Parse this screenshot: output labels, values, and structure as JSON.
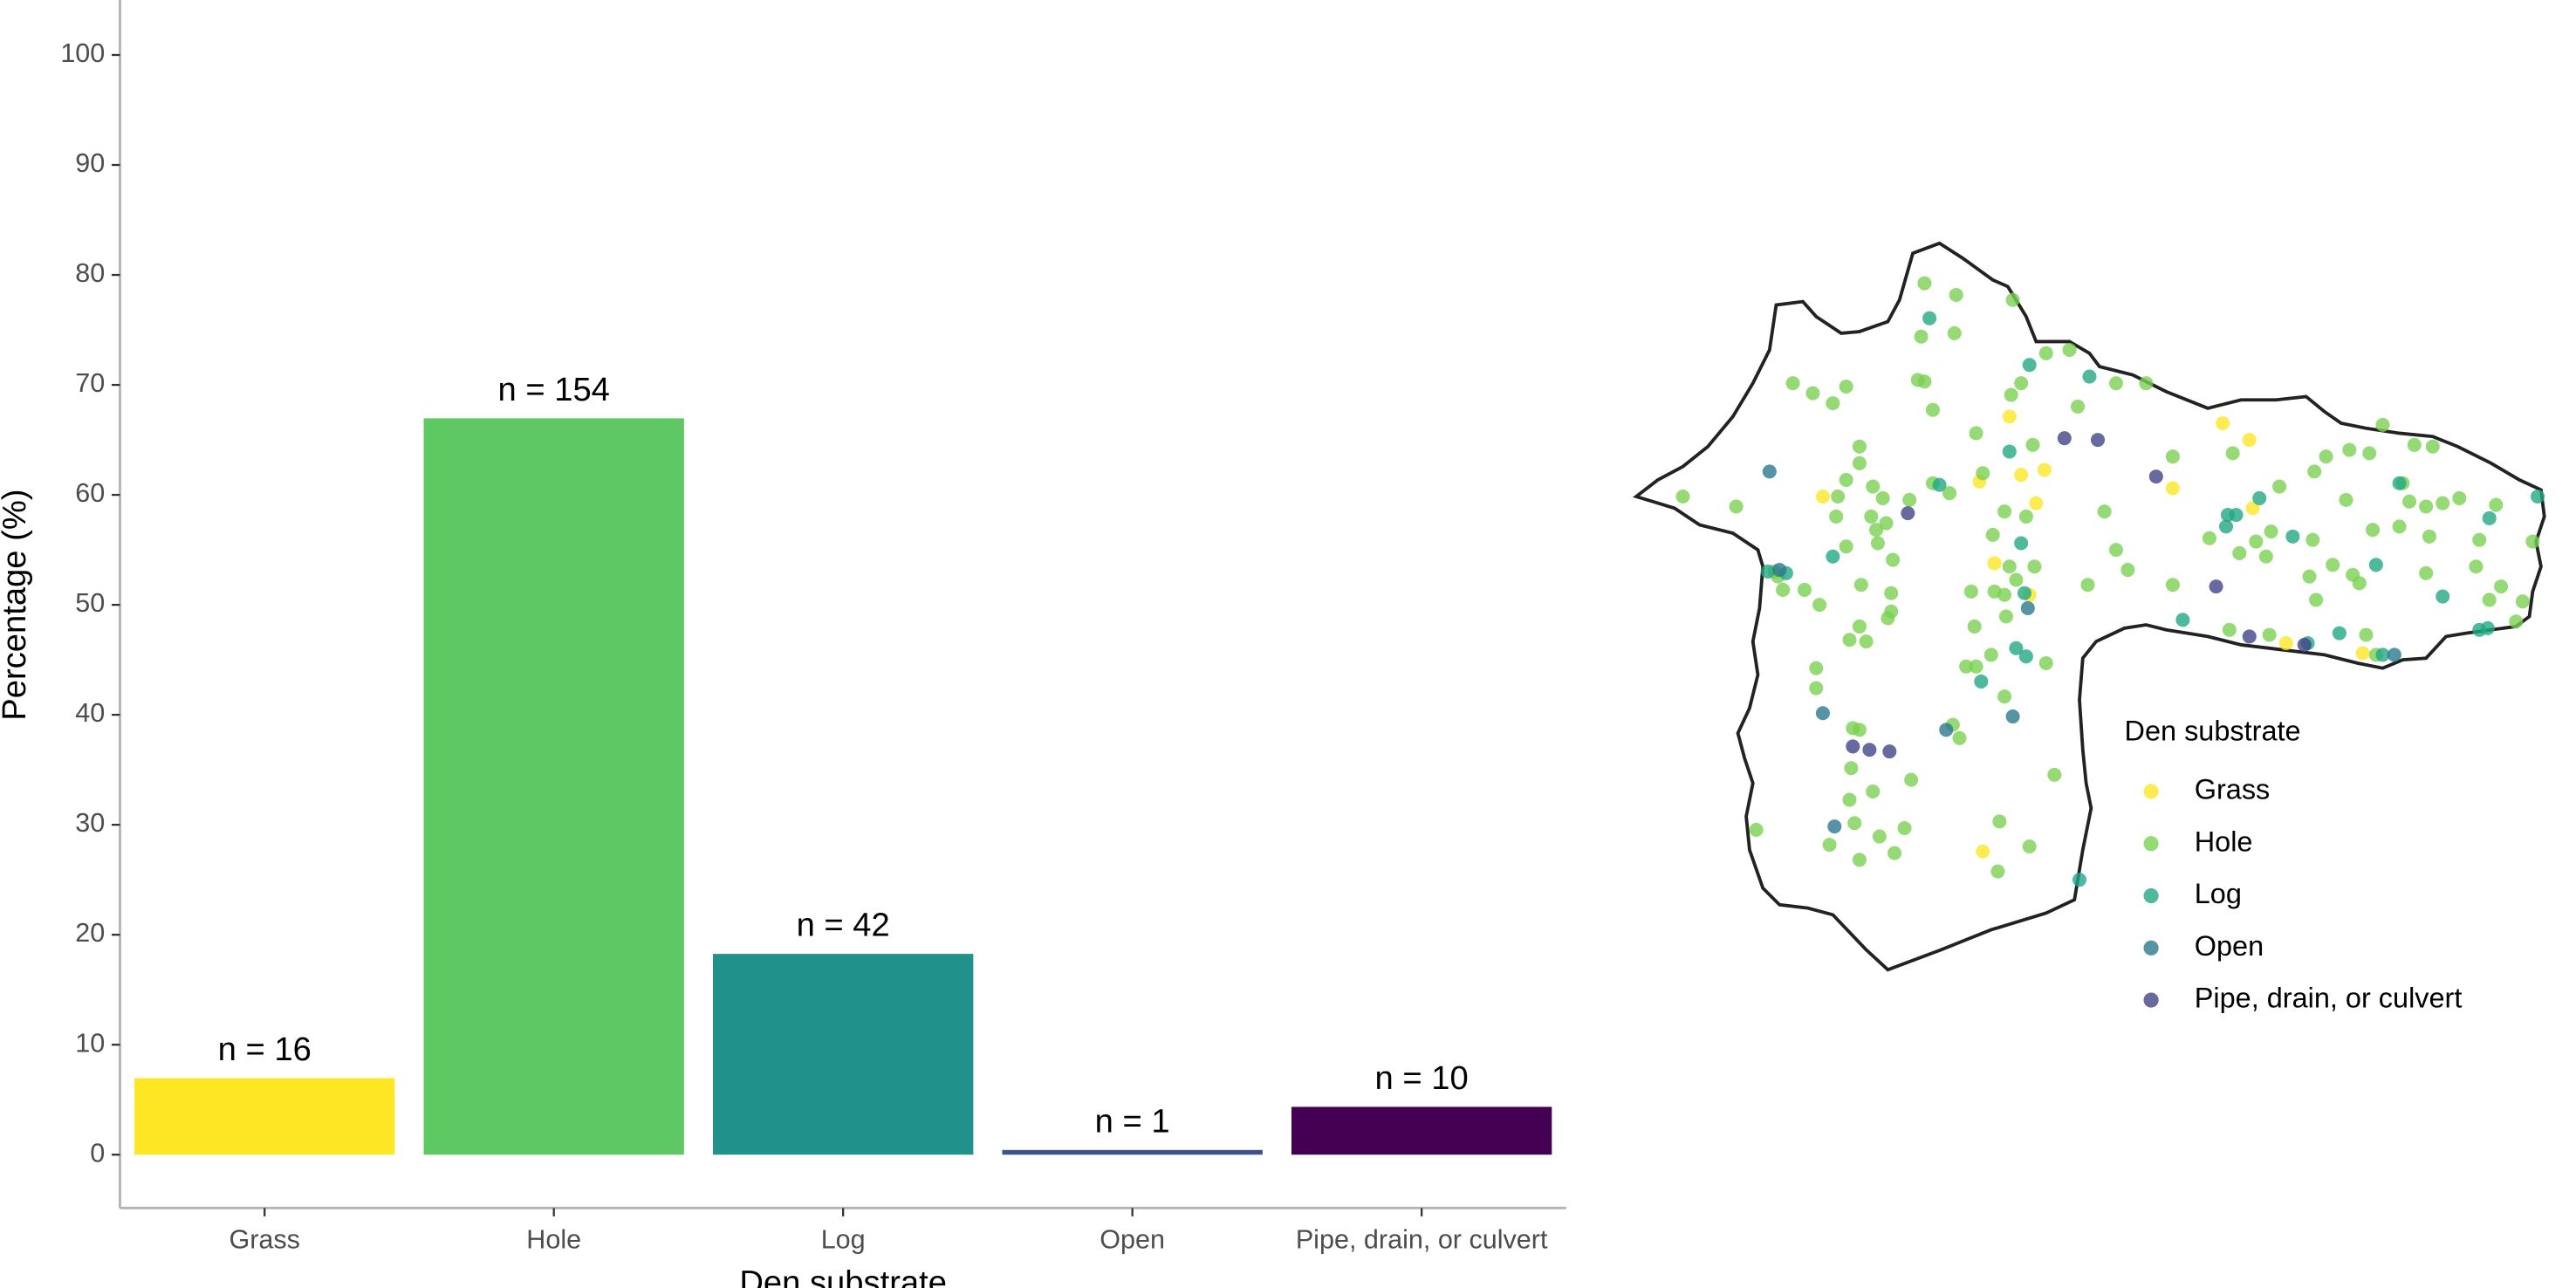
{
  "chart_data": [
    {
      "type": "bar",
      "x_label": "Den substrate",
      "y_label": "Percentage (%)",
      "categories": [
        "Grass",
        "Hole",
        "Log",
        "Open",
        "Pipe, drain, or culvert"
      ],
      "values": [
        6.96,
        66.96,
        18.26,
        0.43,
        4.35
      ],
      "bar_labels": [
        "n =  16",
        "n =  154",
        "n =  42",
        "n =  1",
        "n =  10"
      ],
      "colors": [
        "#FDE725",
        "#5EC962",
        "#21918C",
        "#3B528B",
        "#440154"
      ],
      "ylim": [
        -4.85,
        105
      ],
      "yticks": [
        0,
        10,
        20,
        30,
        40,
        50,
        60,
        70,
        80,
        90,
        100
      ]
    },
    {
      "type": "scatter",
      "legend_title": "Den substrate",
      "xlim": [
        980,
        1530
      ],
      "ylim": [
        585,
        140
      ],
      "series": [
        {
          "name": "Grass",
          "color": "#FDE725",
          "x": [
            1094,
            1206,
            1213,
            1227,
            1222,
            1304,
            1334,
            1350,
            1352,
            1197,
            1218,
            1190,
            1372,
            1418,
            1188
          ],
          "y": [
            298,
            250,
            285,
            282,
            302,
            293,
            254,
            264,
            305,
            338,
            357,
            511,
            386,
            392,
            289
          ]
        },
        {
          "name": "Hole",
          "color": "#7AD151",
          "x": [
            1010,
            1042,
            1076,
            1088,
            1100,
            1108,
            1070,
            1083,
            1067,
            1065,
            1092,
            1103,
            1108,
            1116,
            1124,
            1116,
            1130,
            1123,
            1108,
            1126,
            1127,
            1132,
            1146,
            1136,
            1102,
            1120,
            1116,
            1133,
            1110,
            1090,
            1117,
            1135,
            1135,
            1153,
            1173,
            1155,
            1174,
            1208,
            1228,
            1242,
            1270,
            1288,
            1151,
            1155,
            1160,
            1170,
            1160,
            1186,
            1220,
            1207,
            1213,
            1247,
            1190,
            1196,
            1203,
            1216,
            1221,
            1206,
            1183,
            1197,
            1203,
            1185,
            1204,
            1210,
            1195,
            1180,
            1186,
            1228,
            1203,
            1172,
            1176,
            1112,
            1116,
            1111,
            1124,
            1147,
            1143,
            1113,
            1128,
            1137,
            1116,
            1098,
            1110,
            1090,
            1054,
            1200,
            1218,
            1199,
            1233,
            1253,
            1263,
            1270,
            1277,
            1304,
            1304,
            1340,
            1354,
            1360,
            1368,
            1389,
            1396,
            1410,
            1422,
            1430,
            1442,
            1449,
            1446,
            1460,
            1476,
            1456,
            1458,
            1488,
            1408,
            1400,
            1388,
            1416,
            1412,
            1386,
            1390,
            1424,
            1486,
            1501,
            1514,
            1510,
            1520,
            1466,
            1494,
            1338,
            1362,
            1420,
            1426,
            1344,
            1326,
            1440,
            1456,
            1498,
            1363
          ],
          "y": [
            298,
            304,
            230,
            236,
            242,
            232,
            354,
            354,
            346,
            343,
            363,
            298,
            288,
            278,
            292,
            268,
            299,
            310,
            328,
            318,
            326,
            314,
            300,
            336,
            310,
            385,
            376,
            371,
            384,
            401,
            351,
            356,
            367,
            202,
            200,
            170,
            177,
            180,
            212,
            210,
            230,
            230,
            228,
            229,
            246,
            296,
            290,
            260,
            267,
            237,
            230,
            244,
            284,
            321,
            307,
            310,
            340,
            340,
            355,
            355,
            357,
            376,
            370,
            348,
            393,
            400,
            400,
            398,
            418,
            435,
            443,
            437,
            438,
            461,
            475,
            468,
            497,
            494,
            502,
            512,
            516,
            507,
            480,
            413,
            498,
            493,
            508,
            523,
            465,
            351,
            307,
            330,
            342,
            351,
            274,
            272,
            325,
            334,
            292,
            283,
            274,
            270,
            272,
            255,
            290,
            267,
            301,
            268,
            299,
            304,
            322,
            324,
            300,
            339,
            324,
            350,
            345,
            346,
            360,
            318,
            340,
            352,
            361,
            373,
            325,
            302,
            360,
            378,
            381,
            381,
            393,
            332,
            323,
            316,
            344,
            303,
            319
          ]
        },
        {
          "name": "Log",
          "color": "#22A884",
          "x": [
            1158,
            1218,
            1254,
            1206,
            1213,
            1215,
            1210,
            1216,
            1164,
            1100,
            1336,
            1337,
            1342,
            1356,
            1376,
            1426,
            1440,
            1466,
            1494,
            1523,
            1488,
            1493,
            1248,
            1189,
            1430,
            1404,
            1310,
            1385,
            1061,
            1072
          ],
          "y": [
            191,
            219,
            226,
            271,
            326,
            356,
            389,
            394,
            291,
            334,
            316,
            309,
            309,
            299,
            322,
            339,
            290,
            358,
            311,
            298,
            378,
            377,
            528,
            409,
            393,
            380,
            372,
            386,
            343,
            344
          ]
        },
        {
          "name": "Open",
          "color": "#2A788E",
          "x": [
            1062,
            1068,
            1094,
            1101,
            1168,
            1208,
            1217,
            1437
          ],
          "y": [
            283,
            342,
            428,
            496,
            438,
            430,
            365,
            393
          ]
        },
        {
          "name": "Pipe, drain, or culvert",
          "color": "#414487",
          "x": [
            1145,
            1239,
            1259,
            1294,
            1330,
            1350,
            1383,
            1112,
            1122,
            1134
          ],
          "y": [
            308,
            263,
            264,
            286,
            352,
            382,
            387,
            448,
            450,
            451
          ]
        }
      ]
    }
  ]
}
